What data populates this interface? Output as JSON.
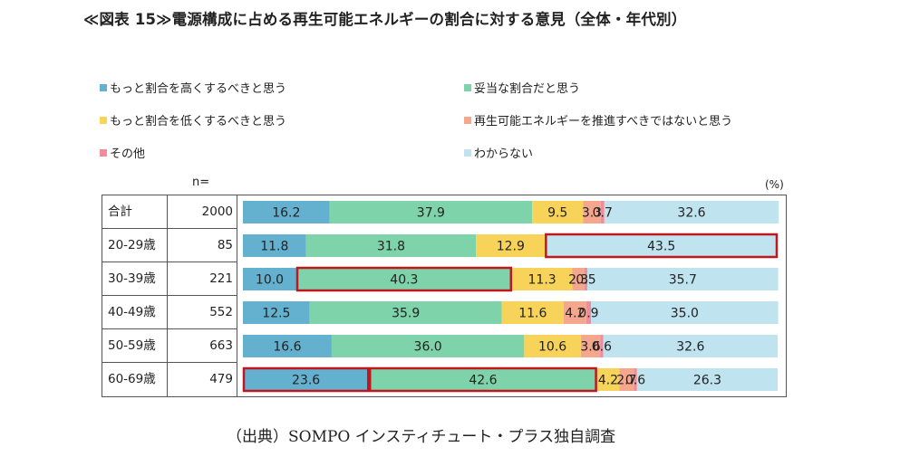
{
  "title": "≪図表 15≫電源構成に占める再生可能エネルギーの割合に対する意見（全体・年代別）",
  "legend": [
    {
      "label": "もっと割合を高くするべきと思う",
      "color": "#64b1cf"
    },
    {
      "label": "妥当な割合だと思う",
      "color": "#7ed3aa"
    },
    {
      "label": "もっと割合を低くするべきと思う",
      "color": "#f7d35a"
    },
    {
      "label": "再生可能エネルギーを推進すべきではないと思う",
      "color": "#f5a78e"
    },
    {
      "label": "その他",
      "color": "#ef8d9b"
    },
    {
      "label": "わからない",
      "color": "#bfe3ef"
    }
  ],
  "n_header": "n=",
  "unit": "(%)",
  "source": "（出典）SOMPO インスティチュート・プラス独自調査",
  "highlight_color": "#c0161c",
  "chart_data": {
    "type": "bar",
    "orientation": "horizontal",
    "stacked": "100%",
    "categories": [
      "合計",
      "20-29歳",
      "30-39歳",
      "40-49歳",
      "50-59歳",
      "60-69歳"
    ],
    "n": [
      "2000",
      "85",
      "221",
      "552",
      "663",
      "479"
    ],
    "series": [
      {
        "name": "もっと割合を高くするべきと思う",
        "values": [
          16.2,
          11.8,
          10.0,
          12.5,
          16.6,
          23.6
        ]
      },
      {
        "name": "妥当な割合だと思う",
        "values": [
          37.9,
          31.8,
          40.3,
          35.9,
          36.0,
          42.6
        ]
      },
      {
        "name": "もっと割合を低くするべきと思う",
        "values": [
          9.5,
          12.9,
          11.3,
          11.6,
          10.6,
          4.2
        ]
      },
      {
        "name": "再生可能エネルギーを推進すべきではないと思う",
        "values": [
          3.3,
          0,
          2.3,
          4.2,
          3.6,
          2.7
        ]
      },
      {
        "name": "その他",
        "values": [
          0.7,
          0,
          0.5,
          0.9,
          0.6,
          0.6
        ]
      },
      {
        "name": "わからない",
        "values": [
          32.6,
          43.5,
          35.7,
          35.0,
          32.6,
          26.3
        ]
      }
    ],
    "data_labels": [
      [
        "16.2",
        "37.9",
        "9.5",
        "3.3",
        "0.7",
        "32.6"
      ],
      [
        "11.8",
        "31.8",
        "12.9",
        "",
        "",
        "43.5"
      ],
      [
        "10.0",
        "40.3",
        "11.3",
        "2.3",
        "0.5",
        "35.7"
      ],
      [
        "12.5",
        "35.9",
        "11.6",
        "4.2",
        "0.9",
        "35.0"
      ],
      [
        "16.6",
        "36.0",
        "10.6",
        "3.6",
        "0.6",
        "32.6"
      ],
      [
        "23.6",
        "42.6",
        "4.2",
        "2.7",
        "0.6",
        "26.3"
      ]
    ],
    "highlights": [
      {
        "row": 1,
        "series": 5
      },
      {
        "row": 2,
        "series": 1
      },
      {
        "row": 5,
        "series": 0
      },
      {
        "row": 5,
        "series": 1
      }
    ],
    "xlim": [
      0,
      100
    ],
    "grid": false,
    "legend_position": "top"
  }
}
